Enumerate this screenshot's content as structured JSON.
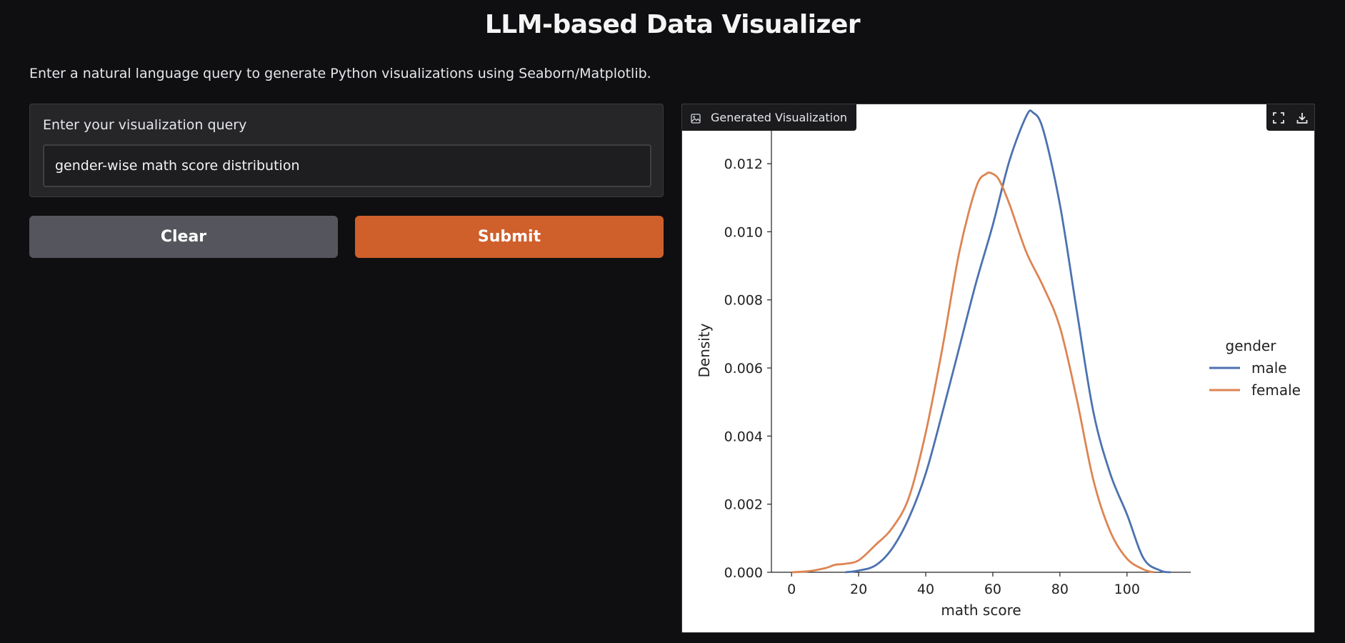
{
  "header": {
    "title": "LLM-based Data Visualizer",
    "description": "Enter a natural language query to generate Python visualizations using Seaborn/Matplotlib."
  },
  "query": {
    "label": "Enter your visualization query",
    "value": "gender-wise math score distribution"
  },
  "buttons": {
    "clear_label": "Clear",
    "submit_label": "Submit"
  },
  "output": {
    "label": "Generated Visualization",
    "icons": [
      "image-icon",
      "fullscreen-icon",
      "download-icon"
    ]
  },
  "colors": {
    "accent": "#cf5f2b",
    "male": "#4c72b0",
    "female": "#dd8452"
  },
  "chart_data": {
    "type": "line",
    "xlabel": "math score",
    "ylabel": "Density",
    "xticks": [
      0,
      20,
      40,
      60,
      80,
      100
    ],
    "yticks": [
      "0.000",
      "0.002",
      "0.004",
      "0.006",
      "0.008",
      "0.010",
      "0.012"
    ],
    "xlim": [
      -6,
      119
    ],
    "ylim": [
      0,
      0.01345
    ],
    "legend_title": "gender",
    "legend_position": "right",
    "series": [
      {
        "name": "male",
        "color": "#4c72b0",
        "x": [
          16,
          20,
          25,
          30,
          35,
          40,
          45,
          50,
          55,
          60,
          65,
          70,
          72,
          75,
          80,
          85,
          90,
          95,
          100,
          105,
          110,
          113
        ],
        "y": [
          0.0,
          5e-05,
          0.0002,
          0.0007,
          0.0016,
          0.0029,
          0.0047,
          0.0066,
          0.0085,
          0.0102,
          0.0121,
          0.0134,
          0.0135,
          0.013,
          0.0108,
          0.0077,
          0.0047,
          0.0029,
          0.0017,
          0.0004,
          5e-05,
          0.0
        ]
      },
      {
        "name": "female",
        "color": "#dd8452",
        "x": [
          0,
          5,
          10,
          13,
          16,
          20,
          25,
          30,
          35,
          40,
          45,
          50,
          55,
          58,
          60,
          62,
          65,
          70,
          75,
          80,
          85,
          90,
          95,
          100,
          105,
          108
        ],
        "y": [
          0.0,
          3e-05,
          0.00012,
          0.00022,
          0.00025,
          0.00035,
          0.0008,
          0.0013,
          0.0022,
          0.0041,
          0.0066,
          0.0094,
          0.0113,
          0.0117,
          0.0117,
          0.0115,
          0.0108,
          0.0094,
          0.0084,
          0.0072,
          0.0051,
          0.0027,
          0.0012,
          0.0004,
          8e-05,
          0.0
        ]
      }
    ]
  }
}
